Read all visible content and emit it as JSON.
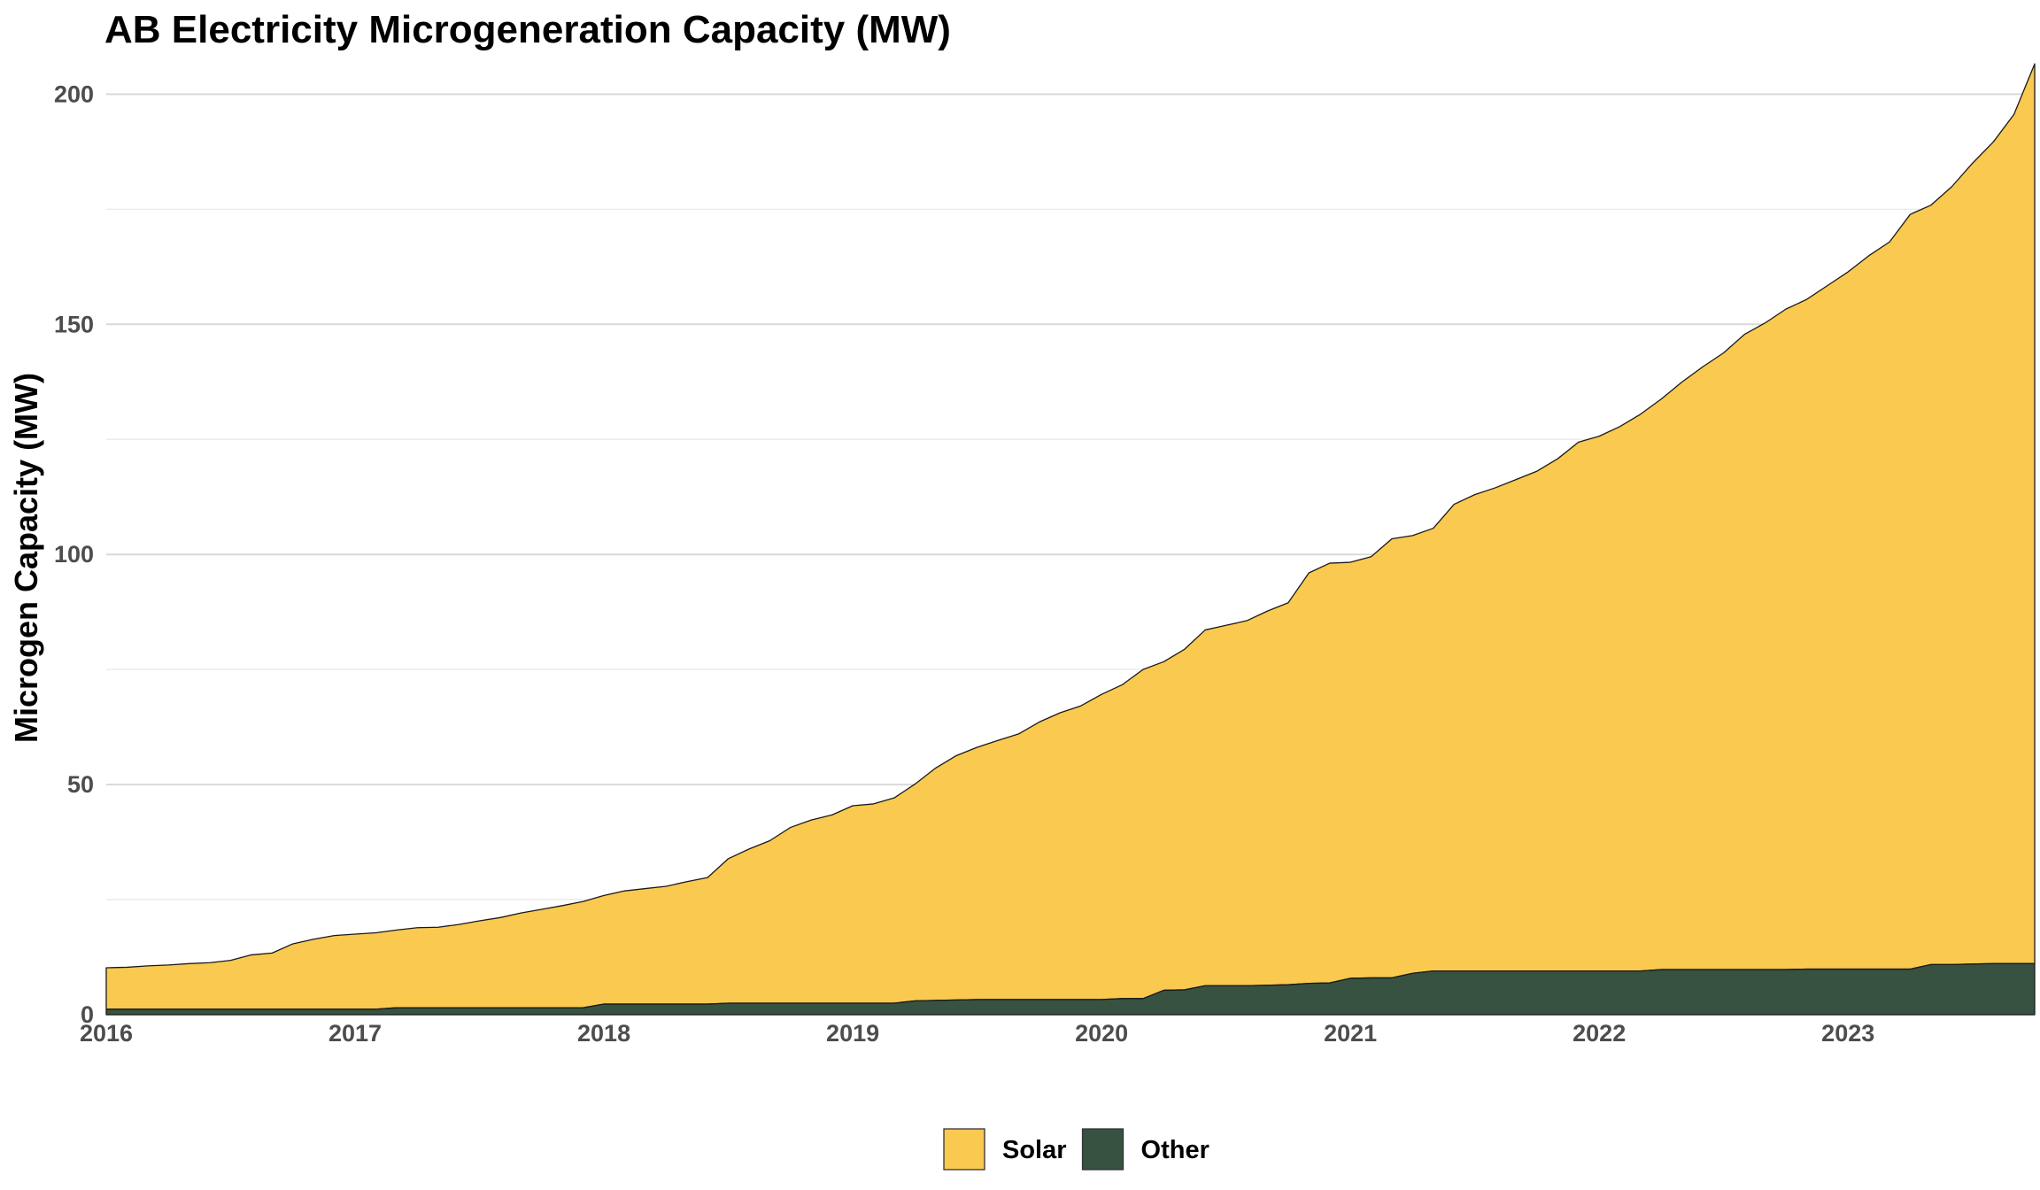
{
  "chart_data": {
    "type": "area",
    "stacked": true,
    "title": "AB Electricity Microgeneration Capacity (MW)",
    "xlabel": "",
    "ylabel": "Microgen Capacity (MW)",
    "xlim": [
      "2016-01",
      "2023-10"
    ],
    "ylim": [
      0,
      207
    ],
    "x_ticks": [
      "2016",
      "2017",
      "2018",
      "2019",
      "2020",
      "2021",
      "2022",
      "2023"
    ],
    "y_ticks": [
      0,
      50,
      100,
      150,
      200
    ],
    "grid": true,
    "legend_position": "bottom",
    "x": [
      "2016-01",
      "2016-02",
      "2016-03",
      "2016-04",
      "2016-05",
      "2016-06",
      "2016-07",
      "2016-08",
      "2016-09",
      "2016-10",
      "2016-11",
      "2016-12",
      "2017-01",
      "2017-02",
      "2017-03",
      "2017-04",
      "2017-05",
      "2017-06",
      "2017-07",
      "2017-08",
      "2017-09",
      "2017-10",
      "2017-11",
      "2017-12",
      "2018-01",
      "2018-02",
      "2018-03",
      "2018-04",
      "2018-05",
      "2018-06",
      "2018-07",
      "2018-08",
      "2018-09",
      "2018-10",
      "2018-11",
      "2018-12",
      "2019-01",
      "2019-02",
      "2019-03",
      "2019-04",
      "2019-05",
      "2019-06",
      "2019-07",
      "2019-08",
      "2019-09",
      "2019-10",
      "2019-11",
      "2019-12",
      "2020-01",
      "2020-02",
      "2020-03",
      "2020-04",
      "2020-05",
      "2020-06",
      "2020-07",
      "2020-08",
      "2020-09",
      "2020-10",
      "2020-11",
      "2020-12",
      "2021-01",
      "2021-02",
      "2021-03",
      "2021-04",
      "2021-05",
      "2021-06",
      "2021-07",
      "2021-08",
      "2021-09",
      "2021-10",
      "2021-11",
      "2021-12",
      "2022-01",
      "2022-02",
      "2022-03",
      "2022-04",
      "2022-05",
      "2022-06",
      "2022-07",
      "2022-08",
      "2022-09",
      "2022-10",
      "2022-11",
      "2022-12",
      "2023-01",
      "2023-02",
      "2023-03",
      "2023-04",
      "2023-05",
      "2023-06",
      "2023-07",
      "2023-08",
      "2023-09",
      "2023-10"
    ],
    "series": [
      {
        "name": "Other",
        "color": "#375241",
        "values": [
          1.2,
          1.2,
          1.2,
          1.2,
          1.2,
          1.2,
          1.2,
          1.2,
          1.2,
          1.2,
          1.2,
          1.2,
          1.2,
          1.2,
          1.5,
          1.5,
          1.5,
          1.5,
          1.5,
          1.5,
          1.5,
          1.5,
          1.5,
          1.5,
          2.3,
          2.3,
          2.3,
          2.3,
          2.3,
          2.3,
          2.5,
          2.5,
          2.5,
          2.5,
          2.5,
          2.5,
          2.5,
          2.5,
          2.5,
          3.0,
          3.1,
          3.2,
          3.3,
          3.3,
          3.3,
          3.3,
          3.3,
          3.3,
          3.3,
          3.5,
          3.5,
          5.3,
          5.4,
          6.3,
          6.3,
          6.3,
          6.4,
          6.5,
          6.8,
          6.9,
          7.9,
          8.0,
          8.0,
          9.0,
          9.5,
          9.5,
          9.5,
          9.5,
          9.5,
          9.5,
          9.5,
          9.5,
          9.5,
          9.5,
          9.5,
          9.8,
          9.8,
          9.8,
          9.8,
          9.8,
          9.8,
          9.8,
          9.9,
          9.9,
          9.9,
          9.9,
          9.9,
          9.9,
          10.9,
          10.9,
          11.0,
          11.1,
          11.1,
          11.1
        ]
      },
      {
        "name": "Solar",
        "color": "#f9c950",
        "values": [
          9.0,
          9.1,
          9.4,
          9.6,
          9.9,
          10.1,
          10.6,
          11.8,
          12.2,
          14.2,
          15.2,
          16.0,
          16.3,
          16.6,
          16.9,
          17.4,
          17.5,
          18.1,
          18.9,
          19.6,
          20.6,
          21.4,
          22.2,
          23.1,
          23.6,
          24.6,
          25.1,
          25.6,
          26.6,
          27.5,
          31.4,
          33.5,
          35.3,
          38.2,
          39.8,
          40.9,
          42.9,
          43.3,
          44.6,
          47.1,
          50.5,
          53.1,
          54.8,
          56.3,
          57.7,
          60.3,
          62.3,
          63.8,
          66.3,
          68.2,
          71.5,
          71.4,
          74.0,
          77.3,
          78.3,
          79.3,
          81.3,
          83.0,
          89.2,
          91.2,
          90.4,
          91.5,
          95.4,
          95.1,
          96.2,
          101.4,
          103.5,
          105.0,
          106.8,
          108.6,
          111.3,
          114.9,
          116.2,
          118.3,
          121.0,
          124.0,
          127.7,
          131.0,
          134.0,
          138.0,
          140.5,
          143.5,
          145.5,
          148.5,
          151.5,
          155.0,
          158.0,
          164.0,
          165.0,
          169.0,
          174.0,
          178.5,
          184.5,
          195.5
        ]
      }
    ]
  },
  "legend": {
    "items": [
      {
        "label": "Solar",
        "color": "#f9c950"
      },
      {
        "label": "Other",
        "color": "#375241"
      }
    ]
  }
}
